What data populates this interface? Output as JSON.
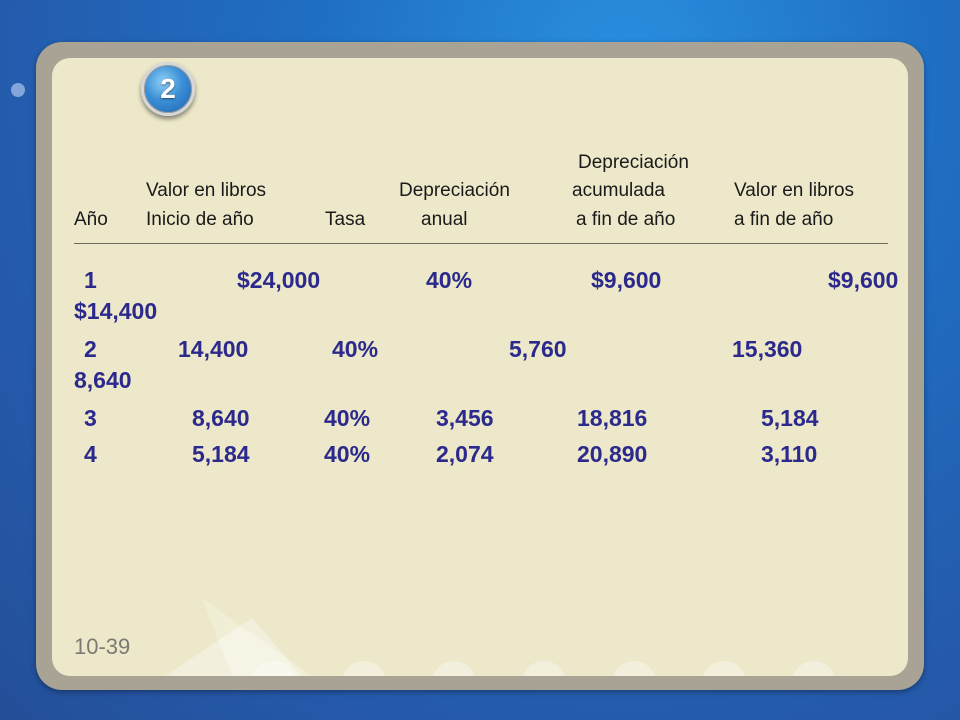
{
  "slide": {
    "badge": "2",
    "page_number": "10-39",
    "header": {
      "depreciacion_top": "Depreciación",
      "valor_libros_1": "Valor en libros",
      "depreciacion_mid": "Depreciación",
      "acumulada": "acumulada",
      "valor_libros_2": "Valor en libros",
      "anio": "Año",
      "inicio": "Inicio de año",
      "tasa": "Tasa",
      "anual": "anual",
      "fin_1": "a fin de año",
      "fin_2": "a fin de año"
    },
    "rows": [
      [
        "1",
        "$24,000",
        "40%",
        "$9,600",
        "$9,600",
        "$14,400"
      ],
      [
        "2",
        "14,400",
        "40%",
        "5,760",
        "15,360",
        "8,640"
      ],
      [
        "3",
        "8,640",
        "40%",
        "3,456",
        "18,816",
        "5,184"
      ],
      [
        "4",
        "5,184",
        "40%",
        "2,074",
        "20,890",
        "3,110"
      ]
    ]
  },
  "colors": {
    "background": "#1f6fc4",
    "slide": "#ece8c9",
    "frame": "#a8a395",
    "table_text": "#2b2a8c"
  }
}
